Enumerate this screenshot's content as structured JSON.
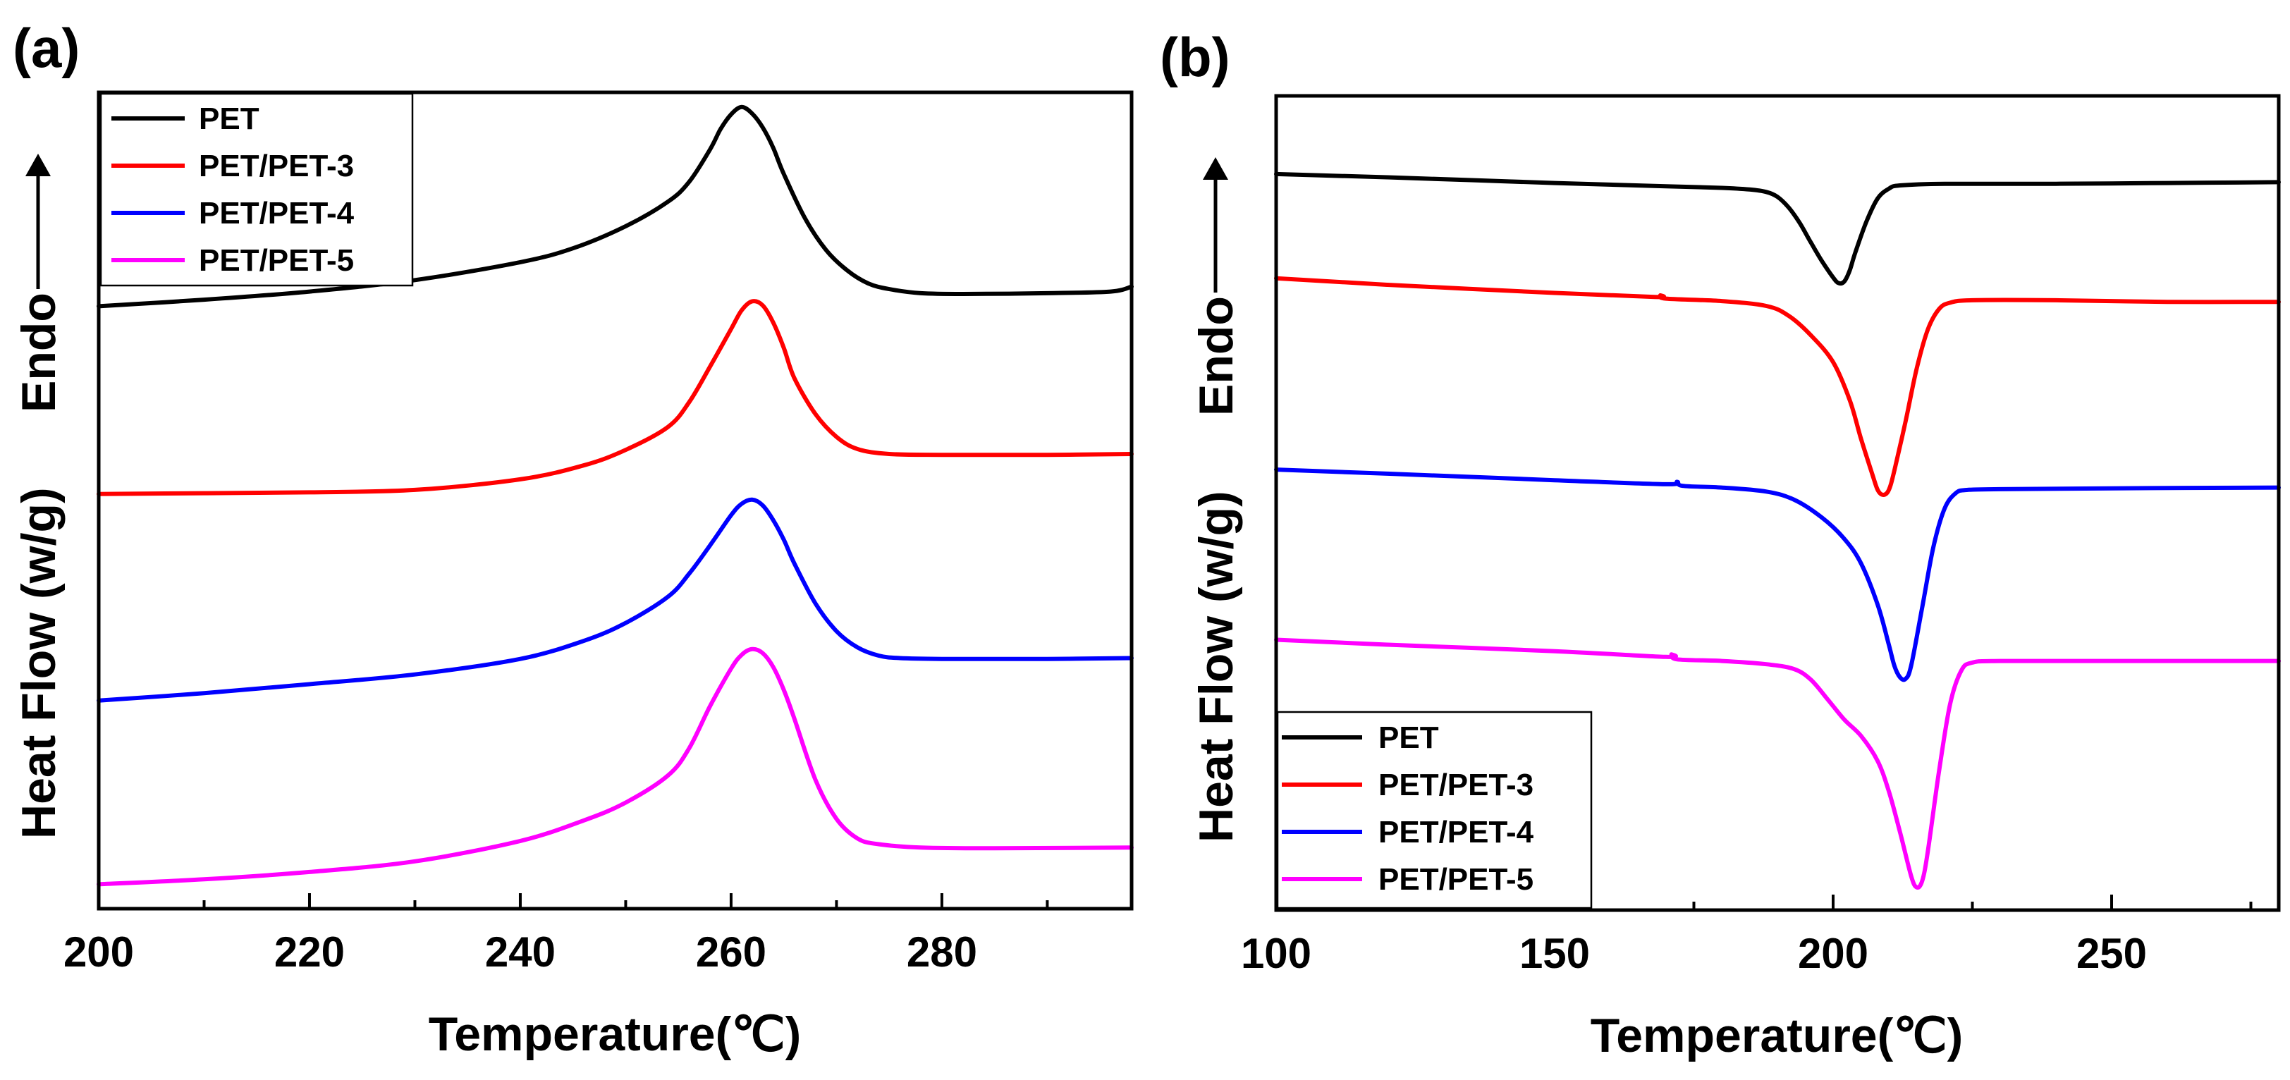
{
  "chart_data": [
    {
      "type": "line",
      "panel_label": "(a)",
      "xlabel": "Temperature(℃)",
      "ylabel": "Heat Flow (w/g)",
      "direction_label": "Endo",
      "xlim": [
        200,
        298
      ],
      "ylim": [
        0,
        100
      ],
      "x_ticks": [
        200,
        220,
        240,
        260,
        280
      ],
      "x_minor_ticks": [
        210,
        230,
        250,
        270,
        290
      ],
      "legend_position": "top-left",
      "series": [
        {
          "name": "PET",
          "color": "#000000",
          "points": [
            [
              200,
              73.8
            ],
            [
              210,
              74.6
            ],
            [
              220,
              75.6
            ],
            [
              230,
              77.0
            ],
            [
              240,
              79.2
            ],
            [
              245,
              80.9
            ],
            [
              250,
              83.6
            ],
            [
              254,
              86.6
            ],
            [
              256,
              89.0
            ],
            [
              258,
              93.0
            ],
            [
              259,
              95.5
            ],
            [
              260,
              97.3
            ],
            [
              261,
              98.2
            ],
            [
              262,
              97.4
            ],
            [
              263,
              95.7
            ],
            [
              264,
              93.2
            ],
            [
              265,
              90.0
            ],
            [
              267,
              84.6
            ],
            [
              269,
              80.7
            ],
            [
              271,
              78.2
            ],
            [
              273,
              76.6
            ],
            [
              275,
              75.9
            ],
            [
              278,
              75.4
            ],
            [
              282,
              75.3
            ],
            [
              290,
              75.4
            ],
            [
              296,
              75.6
            ],
            [
              298,
              76.2
            ]
          ]
        },
        {
          "name": "PET/PET-3",
          "color": "#ff0000",
          "points": [
            [
              200,
              50.8
            ],
            [
              210,
              50.9
            ],
            [
              220,
              51.0
            ],
            [
              230,
              51.3
            ],
            [
              240,
              52.6
            ],
            [
              246,
              54.3
            ],
            [
              250,
              56.2
            ],
            [
              254,
              59.0
            ],
            [
              256,
              62.0
            ],
            [
              258,
              66.4
            ],
            [
              260,
              71.0
            ],
            [
              261,
              73.3
            ],
            [
              262,
              74.4
            ],
            [
              263,
              73.9
            ],
            [
              264,
              71.8
            ],
            [
              265,
              68.7
            ],
            [
              266,
              65.0
            ],
            [
              268,
              60.6
            ],
            [
              270,
              57.8
            ],
            [
              272,
              56.3
            ],
            [
              275,
              55.7
            ],
            [
              280,
              55.6
            ],
            [
              290,
              55.6
            ],
            [
              298,
              55.7
            ]
          ]
        },
        {
          "name": "PET/PET-4",
          "color": "#0000ff",
          "points": [
            [
              200,
              25.5
            ],
            [
              210,
              26.4
            ],
            [
              220,
              27.5
            ],
            [
              230,
              28.7
            ],
            [
              240,
              30.6
            ],
            [
              246,
              32.8
            ],
            [
              250,
              35.0
            ],
            [
              254,
              38.2
            ],
            [
              256,
              41.0
            ],
            [
              258,
              44.5
            ],
            [
              260,
              48.2
            ],
            [
              261,
              49.6
            ],
            [
              262,
              50.1
            ],
            [
              263,
              49.4
            ],
            [
              264,
              47.6
            ],
            [
              265,
              45.2
            ],
            [
              266,
              42.3
            ],
            [
              268,
              37.4
            ],
            [
              270,
              34.0
            ],
            [
              272,
              32.0
            ],
            [
              274,
              31.0
            ],
            [
              276,
              30.7
            ],
            [
              280,
              30.6
            ],
            [
              290,
              30.6
            ],
            [
              298,
              30.7
            ]
          ]
        },
        {
          "name": "PET/PET-5",
          "color": "#ff00ff",
          "points": [
            [
              200,
              3.0
            ],
            [
              210,
              3.6
            ],
            [
              220,
              4.5
            ],
            [
              230,
              5.8
            ],
            [
              240,
              8.3
            ],
            [
              246,
              10.8
            ],
            [
              250,
              13.0
            ],
            [
              254,
              16.3
            ],
            [
              256,
              19.6
            ],
            [
              258,
              24.8
            ],
            [
              260,
              29.4
            ],
            [
              261,
              31.1
            ],
            [
              262,
              31.8
            ],
            [
              263,
              31.3
            ],
            [
              264,
              29.6
            ],
            [
              265,
              26.8
            ],
            [
              266,
              23.3
            ],
            [
              268,
              15.8
            ],
            [
              270,
              11.0
            ],
            [
              272,
              8.6
            ],
            [
              274,
              7.9
            ],
            [
              278,
              7.5
            ],
            [
              285,
              7.4
            ],
            [
              298,
              7.5
            ]
          ]
        }
      ]
    },
    {
      "type": "line",
      "panel_label": "(b)",
      "xlabel": "Temperature(℃)",
      "ylabel": "Heat Flow (w/g)",
      "direction_label": "Endo",
      "xlim": [
        100,
        280
      ],
      "ylim": [
        0,
        100
      ],
      "x_ticks": [
        100,
        150,
        200,
        250
      ],
      "x_minor_ticks": [
        125,
        175,
        225,
        275
      ],
      "legend_position": "bottom-left",
      "series": [
        {
          "name": "PET",
          "color": "#000000",
          "points": [
            [
              100,
              90.4
            ],
            [
              120,
              90.0
            ],
            [
              150,
              89.3
            ],
            [
              170,
              88.9
            ],
            [
              180,
              88.7
            ],
            [
              185,
              88.5
            ],
            [
              188,
              88.2
            ],
            [
              190,
              87.6
            ],
            [
              192,
              86.3
            ],
            [
              194,
              84.4
            ],
            [
              196,
              82.0
            ],
            [
              198,
              79.7
            ],
            [
              200,
              77.7
            ],
            [
              201,
              77.0
            ],
            [
              202,
              77.2
            ],
            [
              203,
              78.6
            ],
            [
              204,
              80.8
            ],
            [
              206,
              84.6
            ],
            [
              208,
              87.4
            ],
            [
              210,
              88.6
            ],
            [
              212,
              89.0
            ],
            [
              220,
              89.2
            ],
            [
              240,
              89.2
            ],
            [
              260,
              89.3
            ],
            [
              280,
              89.4
            ]
          ]
        },
        {
          "name": "PET/PET-3",
          "color": "#ff0000",
          "points": [
            [
              100,
              77.6
            ],
            [
              120,
              76.8
            ],
            [
              150,
              75.8
            ],
            [
              168,
              75.3
            ],
            [
              169,
              75.5
            ],
            [
              170,
              75.1
            ],
            [
              180,
              74.8
            ],
            [
              188,
              74.2
            ],
            [
              192,
              73.0
            ],
            [
              196,
              70.6
            ],
            [
              200,
              67.3
            ],
            [
              203,
              62.6
            ],
            [
              205,
              57.9
            ],
            [
              207,
              53.6
            ],
            [
              208,
              51.6
            ],
            [
              209,
              51.0
            ],
            [
              210,
              51.6
            ],
            [
              211,
              54.0
            ],
            [
              213,
              60.0
            ],
            [
              215,
              66.5
            ],
            [
              217,
              71.3
            ],
            [
              219,
              73.8
            ],
            [
              221,
              74.6
            ],
            [
              225,
              74.9
            ],
            [
              240,
              74.9
            ],
            [
              260,
              74.7
            ],
            [
              280,
              74.7
            ]
          ]
        },
        {
          "name": "PET/PET-4",
          "color": "#0000ff",
          "points": [
            [
              100,
              54.1
            ],
            [
              120,
              53.6
            ],
            [
              150,
              52.8
            ],
            [
              170,
              52.3
            ],
            [
              172,
              52.6
            ],
            [
              173,
              52.1
            ],
            [
              180,
              51.9
            ],
            [
              188,
              51.4
            ],
            [
              193,
              50.4
            ],
            [
              198,
              48.2
            ],
            [
              202,
              45.6
            ],
            [
              205,
              42.6
            ],
            [
              208,
              37.5
            ],
            [
              210,
              32.6
            ],
            [
              211,
              30.0
            ],
            [
              212,
              28.6
            ],
            [
              213,
              28.4
            ],
            [
              214,
              30.0
            ],
            [
              216,
              37.2
            ],
            [
              218,
              44.6
            ],
            [
              220,
              49.3
            ],
            [
              222,
              51.2
            ],
            [
              224,
              51.6
            ],
            [
              230,
              51.7
            ],
            [
              250,
              51.8
            ],
            [
              280,
              51.9
            ]
          ]
        },
        {
          "name": "PET/PET-5",
          "color": "#ff00ff",
          "points": [
            [
              100,
              33.2
            ],
            [
              120,
              32.6
            ],
            [
              150,
              31.8
            ],
            [
              170,
              31.1
            ],
            [
              171,
              31.4
            ],
            [
              172,
              30.8
            ],
            [
              180,
              30.6
            ],
            [
              188,
              30.2
            ],
            [
              193,
              29.6
            ],
            [
              196,
              28.3
            ],
            [
              199,
              25.9
            ],
            [
              202,
              23.4
            ],
            [
              205,
              21.4
            ],
            [
              208,
              18.3
            ],
            [
              210,
              14.6
            ],
            [
              212,
              9.6
            ],
            [
              214,
              4.2
            ],
            [
              215,
              2.8
            ],
            [
              216,
              3.6
            ],
            [
              217,
              7.2
            ],
            [
              219,
              17.0
            ],
            [
              221,
              25.3
            ],
            [
              223,
              29.4
            ],
            [
              225,
              30.4
            ],
            [
              230,
              30.6
            ],
            [
              250,
              30.6
            ],
            [
              280,
              30.6
            ]
          ]
        }
      ]
    }
  ]
}
